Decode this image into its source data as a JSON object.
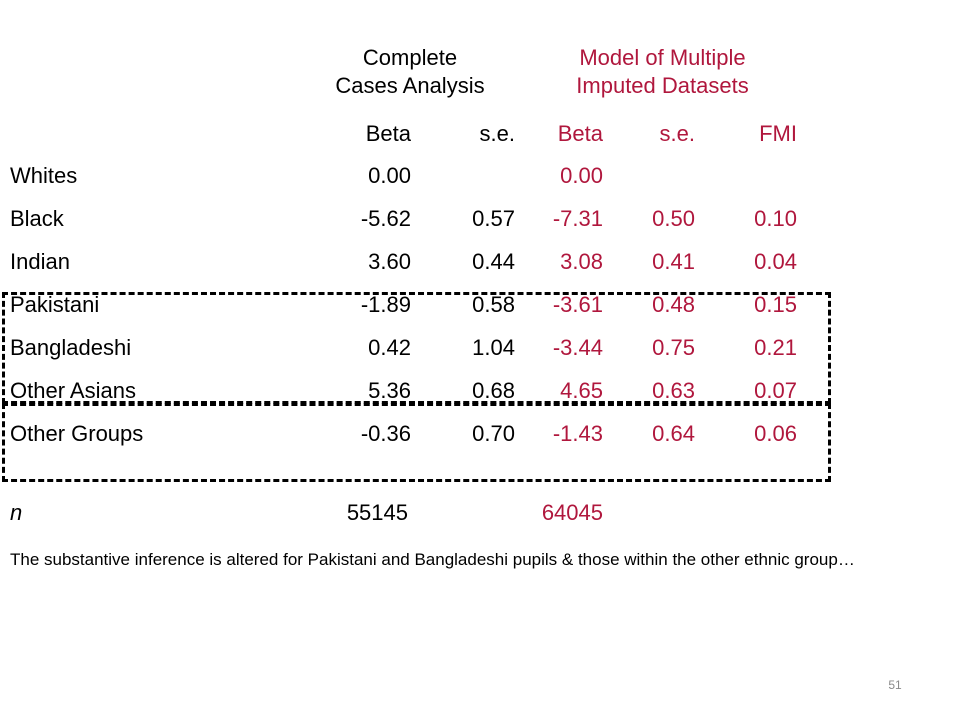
{
  "headers": {
    "complete_line1": "Complete",
    "complete_line2": "Cases Analysis",
    "model_line1": "Model of Multiple",
    "model_line2": "Imputed Datasets"
  },
  "columns": [
    "Beta",
    "s.e.",
    "Beta",
    "s.e.",
    "FMI"
  ],
  "rows": [
    {
      "label": "Whites",
      "cc_beta": "0.00",
      "cc_se": "",
      "mi_beta": "0.00",
      "mi_se": "",
      "fmi": ""
    },
    {
      "label": "Black",
      "cc_beta": "-5.62",
      "cc_se": "0.57",
      "mi_beta": "-7.31",
      "mi_se": "0.50",
      "fmi": "0.10"
    },
    {
      "label": "Indian",
      "cc_beta": "3.60",
      "cc_se": "0.44",
      "mi_beta": "3.08",
      "mi_se": "0.41",
      "fmi": "0.04"
    },
    {
      "label": "Pakistani",
      "cc_beta": "-1.89",
      "cc_se": "0.58",
      "mi_beta": "-3.61",
      "mi_se": "0.48",
      "fmi": "0.15"
    },
    {
      "label": "Bangladeshi",
      "cc_beta": "0.42",
      "cc_se": "1.04",
      "mi_beta": "-3.44",
      "mi_se": "0.75",
      "fmi": "0.21"
    },
    {
      "label": "Other Asians",
      "cc_beta": "5.36",
      "cc_se": "0.68",
      "mi_beta": "4.65",
      "mi_se": "0.63",
      "fmi": "0.07"
    },
    {
      "label": "Other Groups",
      "cc_beta": "-0.36",
      "cc_se": "0.70",
      "mi_beta": "-1.43",
      "mi_se": "0.64",
      "fmi": "0.06"
    }
  ],
  "n_row": {
    "label": "n",
    "cc": "55145",
    "mi": "64045"
  },
  "note": "The substantive inference is altered for Pakistani and Bangladeshi pupils & those within the other ethnic group…",
  "page_number": "51",
  "colors": {
    "accent": "#b0173d",
    "text": "#000000"
  }
}
